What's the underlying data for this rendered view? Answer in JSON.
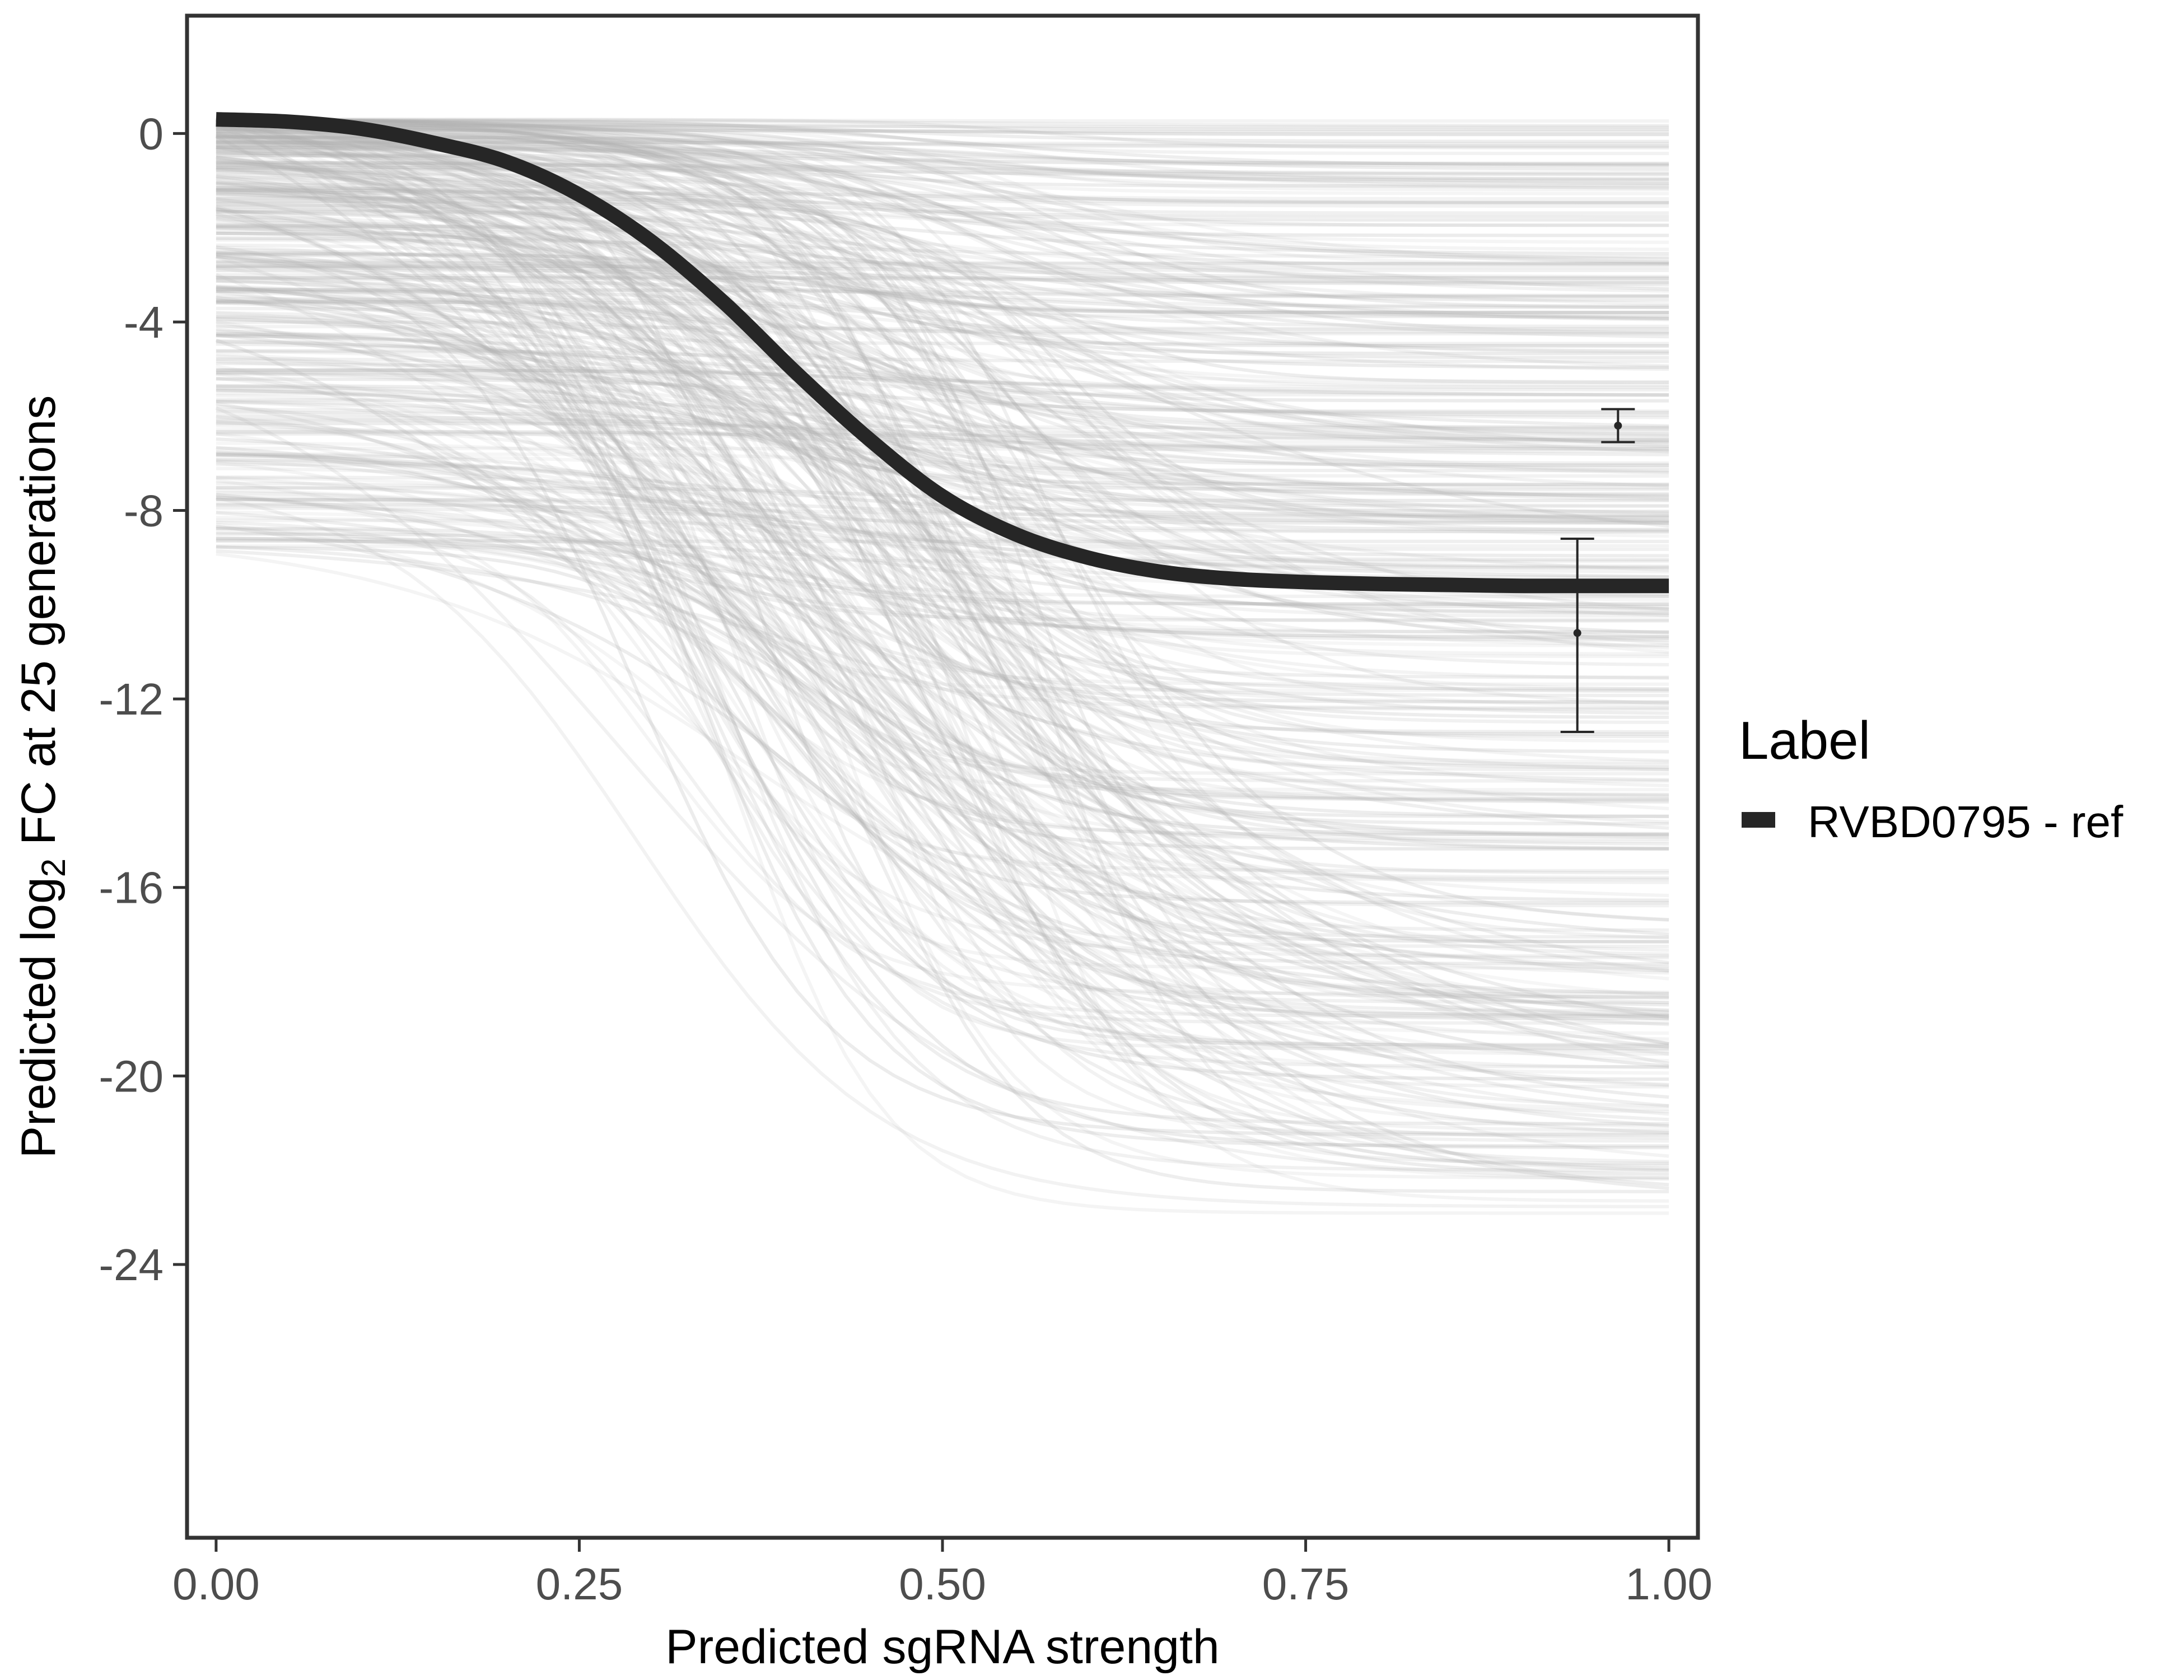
{
  "chart_data": {
    "type": "line",
    "title": "",
    "xlabel": "Predicted sgRNA strength",
    "ylabel": {
      "prefix": "Predicted  log",
      "subscript": "2",
      "suffix": " FC at 25 generations"
    },
    "xlim": [
      -0.02,
      1.02
    ],
    "ylim": [
      -29.8,
      2.5
    ],
    "x_ticks": [
      0,
      0.25,
      0.5,
      0.75,
      1
    ],
    "x_tick_labels": [
      "0.00",
      "0.25",
      "0.50",
      "0.75",
      "1.00"
    ],
    "y_ticks": [
      0,
      -4,
      -8,
      -12,
      -16,
      -20,
      -24
    ],
    "y_tick_labels": [
      "0",
      "-4",
      "-8",
      "-12",
      "-16",
      "-20",
      "-24"
    ],
    "grid": false,
    "legend": {
      "title": "Label",
      "position": "right",
      "entries": [
        {
          "label": "RVBD0795 - ref",
          "color": "#262626"
        }
      ]
    },
    "highlight_series": {
      "name": "RVBD0795 - ref",
      "color": "#262626",
      "x": [
        0,
        0.05,
        0.1,
        0.15,
        0.2,
        0.25,
        0.3,
        0.35,
        0.4,
        0.45,
        0.5,
        0.55,
        0.6,
        0.65,
        0.7,
        0.75,
        0.8,
        0.85,
        0.9,
        0.95,
        1
      ],
      "y": [
        0.3,
        0.25,
        0.1,
        -0.2,
        -0.6,
        -1.3,
        -2.3,
        -3.6,
        -5.1,
        -6.5,
        -7.7,
        -8.5,
        -9.0,
        -9.3,
        -9.45,
        -9.52,
        -9.56,
        -9.58,
        -9.6,
        -9.6,
        -9.6
      ]
    },
    "background_series": {
      "color": "#b3b3b3",
      "description_count": 400,
      "y_start_range": [
        -10.6,
        0.3
      ],
      "y_end_range": [
        -24.2,
        0.3
      ]
    },
    "error_bars": [
      {
        "x": 0.965,
        "y": -6.2,
        "ymin": -6.55,
        "ymax": -5.85
      },
      {
        "x": 0.937,
        "y": -10.6,
        "ymin": -12.7,
        "ymax": -8.6
      }
    ],
    "colors": {
      "panel_border": "#333333",
      "axis_text": "#4d4d4d"
    }
  }
}
